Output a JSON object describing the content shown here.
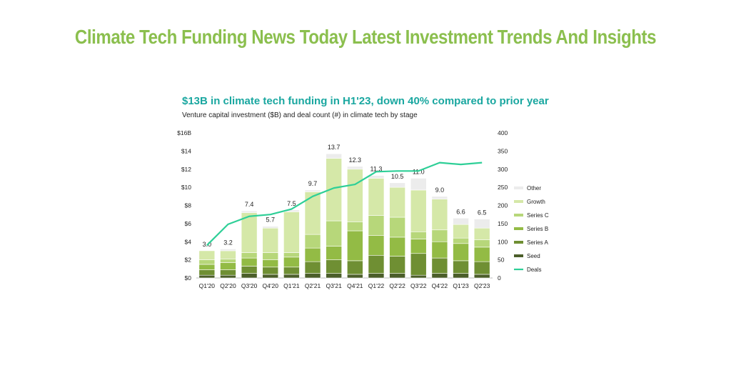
{
  "banner": "Climate Tech Funding News Today Latest Investment Trends And Insights",
  "chart_data": {
    "type": "bar",
    "title": "$13B in climate tech funding in H1'23, down 40% compared to prior year",
    "subtitle": "Venture capital investment ($B) and deal count (#) in climate tech by stage",
    "categories": [
      "Q1'20",
      "Q2'20",
      "Q3'20",
      "Q4'20",
      "Q1'21",
      "Q2'21",
      "Q3'21",
      "Q4'21",
      "Q1'22",
      "Q2'22",
      "Q3'22",
      "Q4'22",
      "Q1'23",
      "Q2'23"
    ],
    "totals": [
      3.0,
      3.2,
      7.4,
      5.7,
      7.5,
      9.7,
      13.7,
      12.3,
      11.3,
      10.5,
      11.0,
      9.0,
      6.6,
      6.5
    ],
    "total_labels": [
      "3.0",
      "3.2",
      "7.4",
      "5.7",
      "7.5",
      "9.7",
      "13.7",
      "12.3",
      "11.3",
      "10.5",
      "11.0",
      "9.0",
      "6.6",
      "6.5"
    ],
    "series": [
      {
        "name": "Seed",
        "color": "#4b5e2a",
        "values": [
          0.3,
          0.3,
          0.5,
          0.4,
          0.4,
          0.5,
          0.5,
          0.4,
          0.5,
          0.5,
          0.3,
          0.5,
          0.5,
          0.4
        ]
      },
      {
        "name": "Series A",
        "color": "#6f8f33",
        "values": [
          0.6,
          0.6,
          0.8,
          0.8,
          0.8,
          1.3,
          1.5,
          1.5,
          2.0,
          1.9,
          2.4,
          1.7,
          1.4,
          1.4
        ]
      },
      {
        "name": "Series B",
        "color": "#93bb45",
        "values": [
          0.6,
          0.8,
          0.9,
          0.8,
          1.1,
          1.5,
          1.5,
          3.3,
          2.2,
          2.1,
          1.6,
          1.8,
          1.9,
          1.6
        ]
      },
      {
        "name": "Series C",
        "color": "#b7d77a",
        "values": [
          0.5,
          0.4,
          0.6,
          0.8,
          0.5,
          1.5,
          2.8,
          1.0,
          2.2,
          2.2,
          0.8,
          1.3,
          0.6,
          0.8
        ]
      },
      {
        "name": "Growth",
        "color": "#d5e8a8",
        "values": [
          1.0,
          0.9,
          4.4,
          2.7,
          4.5,
          4.7,
          6.9,
          5.8,
          4.1,
          3.3,
          4.6,
          3.4,
          1.5,
          1.3
        ]
      },
      {
        "name": "Other",
        "color": "#ececec",
        "values": [
          0.0,
          0.2,
          0.2,
          0.2,
          0.2,
          0.2,
          0.5,
          0.3,
          0.3,
          0.5,
          1.3,
          0.3,
          0.7,
          1.0
        ]
      }
    ],
    "line_series": {
      "name": "Deals",
      "color": "#2ecf97",
      "values": [
        90,
        148,
        170,
        175,
        190,
        225,
        248,
        258,
        293,
        295,
        295,
        318,
        313,
        318
      ]
    },
    "y_left": {
      "ticks": [
        "$0",
        "$2",
        "$4",
        "$6",
        "$8",
        "$10",
        "$12",
        "$14",
        "$16B"
      ],
      "ylim": [
        0,
        16
      ]
    },
    "y_right": {
      "ticks": [
        "0",
        "50",
        "100",
        "150",
        "200",
        "250",
        "300",
        "350",
        "400"
      ],
      "ylim": [
        0,
        400
      ]
    },
    "legend_order": [
      "Other",
      "Growth",
      "Series C",
      "Series B",
      "Series A",
      "Seed",
      "Deals"
    ],
    "legend_position": "right"
  }
}
